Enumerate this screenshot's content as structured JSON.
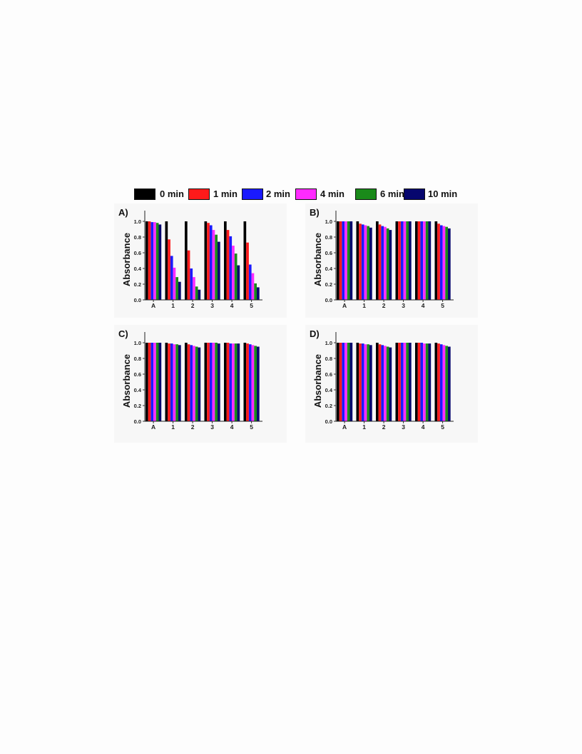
{
  "legend": {
    "items": [
      {
        "label": "0 min",
        "color": "#000000"
      },
      {
        "label": "1 min",
        "color": "#ff1a1a"
      },
      {
        "label": "2 min",
        "color": "#1a1aff"
      },
      {
        "label": "4 min",
        "color": "#ff2bff"
      },
      {
        "label": "6 min",
        "color": "#1a8a1a"
      },
      {
        "label": "10 min",
        "color": "#06066e"
      }
    ]
  },
  "chart_data": [
    {
      "type": "bar",
      "panel_label": "A)",
      "ylabel": "Absorbance",
      "ylim": [
        0.0,
        1.1
      ],
      "yticks": [
        "0.0",
        "0.2",
        "0.4",
        "0.6",
        "0.8",
        "1.0"
      ],
      "categories": [
        "A",
        "1",
        "2",
        "3",
        "4",
        "5"
      ],
      "series": [
        {
          "name": "0 min",
          "values": [
            1.0,
            1.0,
            1.0,
            1.0,
            1.0,
            1.0
          ]
        },
        {
          "name": "1 min",
          "values": [
            1.0,
            0.77,
            0.63,
            0.98,
            0.89,
            0.73
          ]
        },
        {
          "name": "2 min",
          "values": [
            0.99,
            0.56,
            0.4,
            0.95,
            0.81,
            0.45
          ]
        },
        {
          "name": "4 min",
          "values": [
            0.99,
            0.41,
            0.29,
            0.89,
            0.69,
            0.34
          ]
        },
        {
          "name": "6 min",
          "values": [
            0.98,
            0.29,
            0.17,
            0.83,
            0.59,
            0.21
          ]
        },
        {
          "name": "10 min",
          "values": [
            0.96,
            0.23,
            0.13,
            0.74,
            0.44,
            0.16
          ]
        }
      ]
    },
    {
      "type": "bar",
      "panel_label": "B)",
      "ylabel": "Absorbance",
      "ylim": [
        0.0,
        1.1
      ],
      "yticks": [
        "0.0",
        "0.2",
        "0.4",
        "0.6",
        "0.8",
        "1.0"
      ],
      "categories": [
        "A",
        "1",
        "2",
        "3",
        "4",
        "5"
      ],
      "series": [
        {
          "name": "0 min",
          "values": [
            1.0,
            1.0,
            1.0,
            1.0,
            1.0,
            1.0
          ]
        },
        {
          "name": "1 min",
          "values": [
            1.0,
            0.97,
            0.96,
            1.0,
            1.0,
            0.97
          ]
        },
        {
          "name": "2 min",
          "values": [
            1.0,
            0.96,
            0.94,
            1.0,
            1.0,
            0.95
          ]
        },
        {
          "name": "4 min",
          "values": [
            1.0,
            0.95,
            0.93,
            1.0,
            1.0,
            0.94
          ]
        },
        {
          "name": "6 min",
          "values": [
            1.0,
            0.94,
            0.91,
            1.0,
            1.0,
            0.93
          ]
        },
        {
          "name": "10 min",
          "values": [
            1.0,
            0.92,
            0.89,
            1.0,
            1.0,
            0.91
          ]
        }
      ]
    },
    {
      "type": "bar",
      "panel_label": "C)",
      "ylabel": "Absorbance",
      "ylim": [
        0.0,
        1.1
      ],
      "yticks": [
        "0.0",
        "0.2",
        "0.4",
        "0.6",
        "0.8",
        "1.0"
      ],
      "categories": [
        "A",
        "1",
        "2",
        "3",
        "4",
        "5"
      ],
      "series": [
        {
          "name": "0 min",
          "values": [
            1.0,
            1.0,
            1.0,
            1.0,
            1.0,
            1.0
          ]
        },
        {
          "name": "1 min",
          "values": [
            1.0,
            0.99,
            0.98,
            1.0,
            1.0,
            0.99
          ]
        },
        {
          "name": "2 min",
          "values": [
            1.0,
            0.99,
            0.97,
            1.0,
            0.99,
            0.98
          ]
        },
        {
          "name": "4 min",
          "values": [
            1.0,
            0.98,
            0.96,
            1.0,
            0.99,
            0.97
          ]
        },
        {
          "name": "6 min",
          "values": [
            1.0,
            0.98,
            0.95,
            1.0,
            0.99,
            0.96
          ]
        },
        {
          "name": "10 min",
          "values": [
            1.0,
            0.97,
            0.94,
            0.99,
            0.99,
            0.95
          ]
        }
      ]
    },
    {
      "type": "bar",
      "panel_label": "D)",
      "ylabel": "Absorbance",
      "ylim": [
        0.0,
        1.1
      ],
      "yticks": [
        "0.0",
        "0.2",
        "0.4",
        "0.6",
        "0.8",
        "1.0"
      ],
      "categories": [
        "A",
        "1",
        "2",
        "3",
        "4",
        "5"
      ],
      "series": [
        {
          "name": "0 min",
          "values": [
            1.0,
            1.0,
            1.0,
            1.0,
            1.0,
            1.0
          ]
        },
        {
          "name": "1 min",
          "values": [
            1.0,
            0.99,
            0.98,
            1.0,
            1.0,
            0.99
          ]
        },
        {
          "name": "2 min",
          "values": [
            1.0,
            0.99,
            0.97,
            1.0,
            1.0,
            0.98
          ]
        },
        {
          "name": "4 min",
          "values": [
            1.0,
            0.98,
            0.96,
            1.0,
            0.99,
            0.97
          ]
        },
        {
          "name": "6 min",
          "values": [
            1.0,
            0.98,
            0.95,
            1.0,
            0.99,
            0.96
          ]
        },
        {
          "name": "10 min",
          "values": [
            1.0,
            0.97,
            0.94,
            1.0,
            0.99,
            0.95
          ]
        }
      ]
    }
  ]
}
